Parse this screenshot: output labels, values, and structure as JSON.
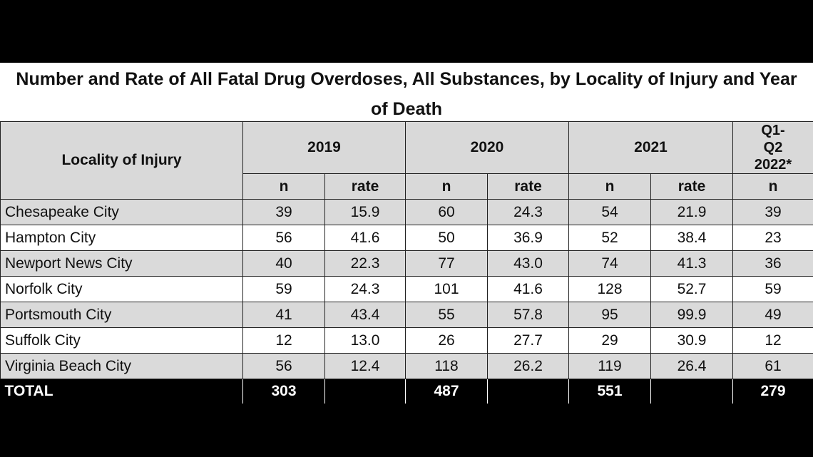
{
  "title": "Number and Rate of All Fatal Drug Overdoses, All Substances, by Locality of Injury and Year of Death",
  "table": {
    "locality_header": "Locality of Injury",
    "years": [
      "2019",
      "2020",
      "2021",
      "Q1-Q2 2022*"
    ],
    "subheaders": [
      "n",
      "rate",
      "n",
      "rate",
      "n",
      "rate",
      "n"
    ],
    "rows": [
      [
        "Chesapeake City",
        "39",
        "15.9",
        "60",
        "24.3",
        "54",
        "21.9",
        "39"
      ],
      [
        "Hampton City",
        "56",
        "41.6",
        "50",
        "36.9",
        "52",
        "38.4",
        "23"
      ],
      [
        "Newport News City",
        "40",
        "22.3",
        "77",
        "43.0",
        "74",
        "41.3",
        "36"
      ],
      [
        "Norfolk City",
        "59",
        "24.3",
        "101",
        "41.6",
        "128",
        "52.7",
        "59"
      ],
      [
        "Portsmouth City",
        "41",
        "43.4",
        "55",
        "57.8",
        "95",
        "99.9",
        "49"
      ],
      [
        "Suffolk City",
        "12",
        "13.0",
        "26",
        "27.7",
        "29",
        "30.9",
        "12"
      ],
      [
        "Virginia Beach City",
        "56",
        "12.4",
        "118",
        "26.2",
        "119",
        "26.4",
        "61"
      ]
    ],
    "total": {
      "label": "TOTAL",
      "values": [
        "303",
        "487",
        "551",
        "279"
      ]
    }
  }
}
